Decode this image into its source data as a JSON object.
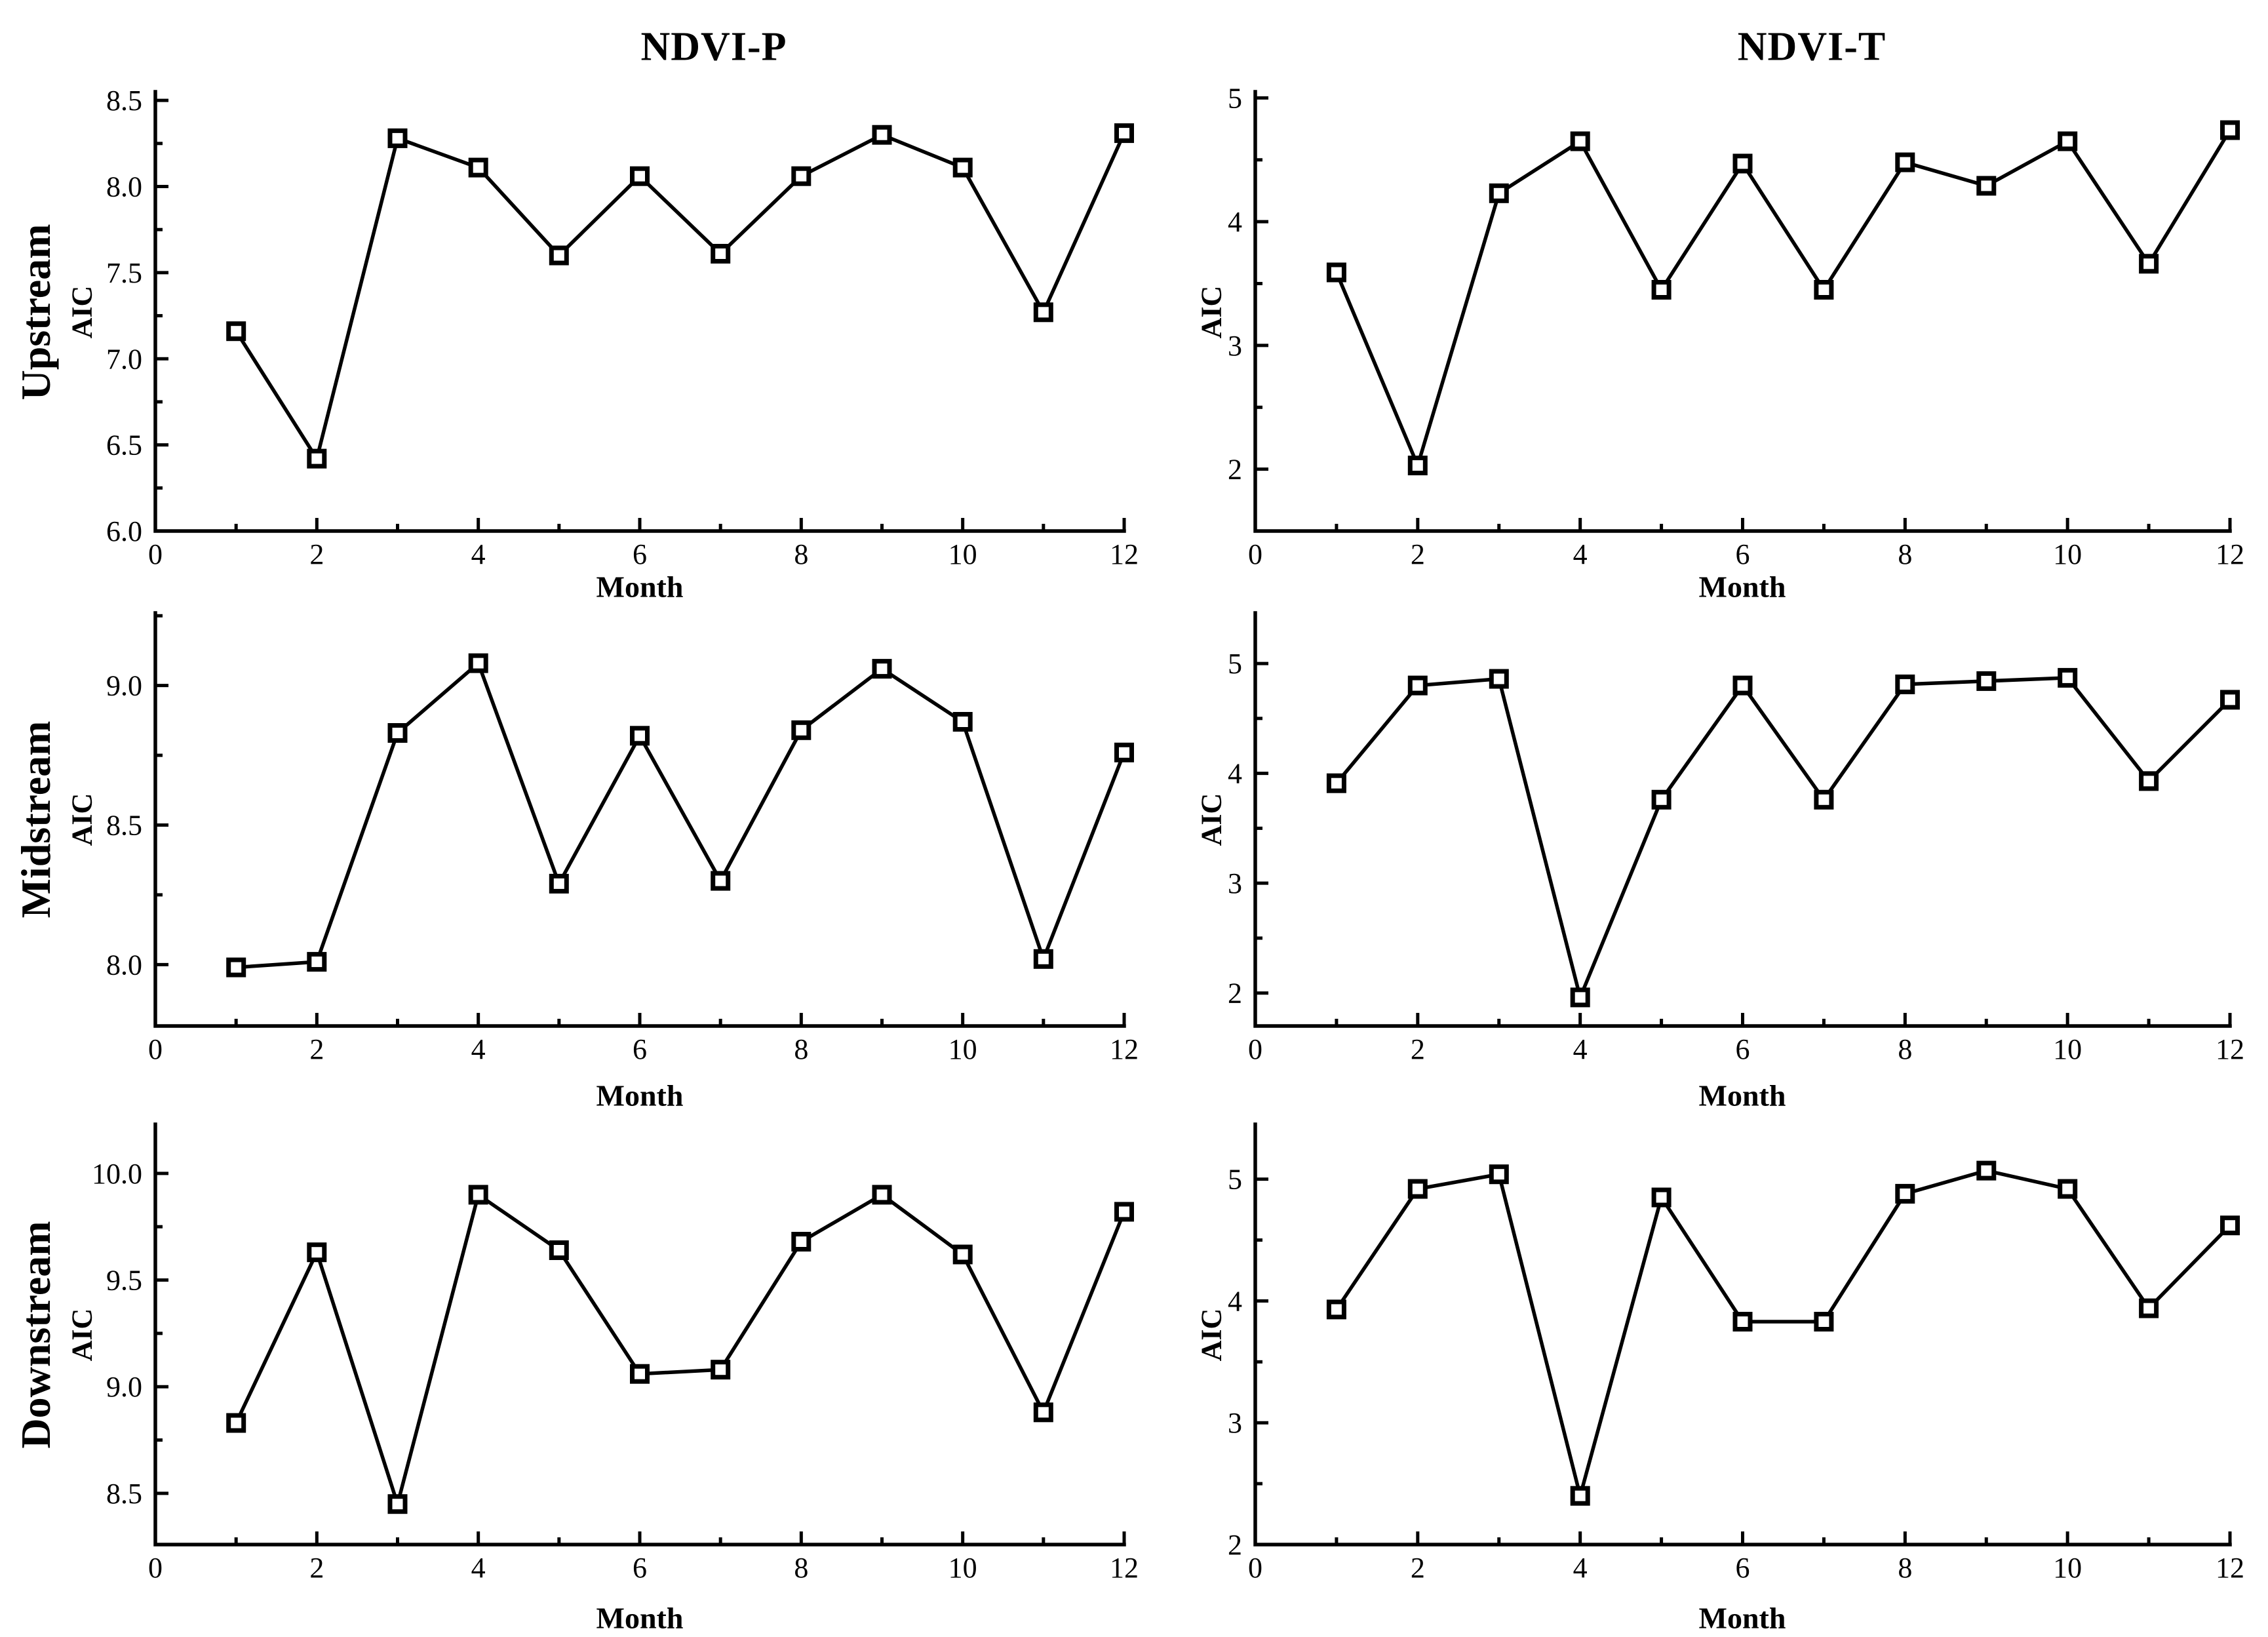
{
  "figure": {
    "column_titles": [
      "NDVI-P",
      "NDVI-T"
    ],
    "row_labels": [
      "Upstream",
      "Midstream",
      "Downstream"
    ],
    "background_color": "#ffffff",
    "axis_color": "#000000"
  },
  "chart_data": [
    {
      "type": "line",
      "panel": "upstream-ndvi-p",
      "row": "Upstream",
      "column": "NDVI-P",
      "xlabel": "Month",
      "ylabel": "AIC",
      "x": [
        1,
        2,
        3,
        4,
        5,
        6,
        7,
        8,
        9,
        10,
        11,
        12
      ],
      "y": [
        7.16,
        6.42,
        8.28,
        8.11,
        7.6,
        8.06,
        7.61,
        8.06,
        8.3,
        8.11,
        7.27,
        8.31
      ],
      "xlim": [
        0,
        12
      ],
      "ylim": [
        6.0,
        8.55
      ],
      "xticks": [
        0,
        2,
        4,
        6,
        8,
        10,
        12
      ],
      "xtick_labels": [
        "0",
        "2",
        "4",
        "6",
        "8",
        "10",
        "12"
      ],
      "yticks": [
        6.0,
        6.5,
        7.0,
        7.5,
        8.0,
        8.5
      ],
      "ytick_labels": [
        "6.0",
        "6.5",
        "7.0",
        "7.5",
        "8.0",
        "8.5"
      ],
      "x_minor_step": 1,
      "y_minor_step": 0.25,
      "grid": false,
      "marker": "open-square",
      "marker_fill": "#ffffff",
      "line_color": "#000000"
    },
    {
      "type": "line",
      "panel": "upstream-ndvi-t",
      "row": "Upstream",
      "column": "NDVI-T",
      "xlabel": "Month",
      "ylabel": "AIC",
      "x": [
        1,
        2,
        3,
        4,
        5,
        6,
        7,
        8,
        9,
        10,
        11,
        12
      ],
      "y": [
        3.59,
        2.03,
        4.23,
        4.65,
        3.45,
        4.47,
        3.45,
        4.48,
        4.29,
        4.65,
        3.66,
        4.74
      ],
      "xlim": [
        0,
        12
      ],
      "ylim": [
        1.5,
        5.05
      ],
      "xticks": [
        0,
        2,
        4,
        6,
        8,
        10,
        12
      ],
      "xtick_labels": [
        "0",
        "2",
        "4",
        "6",
        "8",
        "10",
        "12"
      ],
      "yticks": [
        2,
        3,
        4,
        5
      ],
      "ytick_labels": [
        "2",
        "3",
        "4",
        "5"
      ],
      "x_minor_step": 1,
      "y_minor_step": 0.5,
      "grid": false,
      "marker": "open-square",
      "marker_fill": "#ffffff",
      "line_color": "#000000"
    },
    {
      "type": "line",
      "panel": "midstream-ndvi-p",
      "row": "Midstream",
      "column": "NDVI-P",
      "xlabel": "Month",
      "ylabel": "AIC",
      "x": [
        1,
        2,
        3,
        4,
        5,
        6,
        7,
        8,
        9,
        10,
        11,
        12
      ],
      "y": [
        7.99,
        8.01,
        8.83,
        9.08,
        8.29,
        8.82,
        8.3,
        8.84,
        9.06,
        8.87,
        8.02,
        8.76
      ],
      "xlim": [
        0,
        12
      ],
      "ylim": [
        7.78,
        9.26
      ],
      "xticks": [
        0,
        2,
        4,
        6,
        8,
        10,
        12
      ],
      "xtick_labels": [
        "0",
        "2",
        "4",
        "6",
        "8",
        "10",
        "12"
      ],
      "yticks": [
        8.0,
        8.5,
        9.0
      ],
      "ytick_labels": [
        "8.0",
        "8.5",
        "9.0"
      ],
      "x_minor_step": 1,
      "y_minor_step": 0.25,
      "grid": false,
      "marker": "open-square",
      "marker_fill": "#ffffff",
      "line_color": "#000000"
    },
    {
      "type": "line",
      "panel": "midstream-ndvi-t",
      "row": "Midstream",
      "column": "NDVI-T",
      "xlabel": "Month",
      "ylabel": "AIC",
      "x": [
        1,
        2,
        3,
        4,
        5,
        6,
        7,
        8,
        9,
        10,
        11,
        12
      ],
      "y": [
        3.91,
        4.8,
        4.86,
        1.96,
        3.76,
        4.8,
        3.76,
        4.81,
        4.84,
        4.87,
        3.93,
        4.67
      ],
      "xlim": [
        0,
        12
      ],
      "ylim": [
        1.7,
        5.46
      ],
      "xticks": [
        0,
        2,
        4,
        6,
        8,
        10,
        12
      ],
      "xtick_labels": [
        "0",
        "2",
        "4",
        "6",
        "8",
        "10",
        "12"
      ],
      "yticks": [
        2,
        3,
        4,
        5
      ],
      "ytick_labels": [
        "2",
        "3",
        "4",
        "5"
      ],
      "x_minor_step": 1,
      "y_minor_step": 0.5,
      "grid": false,
      "marker": "open-square",
      "marker_fill": "#ffffff",
      "line_color": "#000000"
    },
    {
      "type": "line",
      "panel": "downstream-ndvi-p",
      "row": "Downstream",
      "column": "NDVI-P",
      "xlabel": "Month",
      "ylabel": "AIC",
      "x": [
        1,
        2,
        3,
        4,
        5,
        6,
        7,
        8,
        9,
        10,
        11,
        12
      ],
      "y": [
        8.83,
        9.63,
        8.45,
        9.9,
        9.64,
        9.06,
        9.08,
        9.68,
        9.9,
        9.62,
        8.88,
        9.82
      ],
      "xlim": [
        0,
        12
      ],
      "ylim": [
        8.26,
        10.23
      ],
      "xticks": [
        0,
        2,
        4,
        6,
        8,
        10,
        12
      ],
      "xtick_labels": [
        "0",
        "2",
        "4",
        "6",
        "8",
        "10",
        "12"
      ],
      "yticks": [
        8.5,
        9.0,
        9.5,
        10.0
      ],
      "ytick_labels": [
        "8.5",
        "9.0",
        "9.5",
        "10.0"
      ],
      "x_minor_step": 1,
      "y_minor_step": 0.25,
      "grid": false,
      "marker": "open-square",
      "marker_fill": "#ffffff",
      "line_color": "#000000"
    },
    {
      "type": "line",
      "panel": "downstream-ndvi-t",
      "row": "Downstream",
      "column": "NDVI-T",
      "xlabel": "Month",
      "ylabel": "AIC",
      "x": [
        1,
        2,
        3,
        4,
        5,
        6,
        7,
        8,
        9,
        10,
        11,
        12
      ],
      "y": [
        3.93,
        4.92,
        5.04,
        2.4,
        4.85,
        3.83,
        3.83,
        4.88,
        5.07,
        4.92,
        3.94,
        4.62
      ],
      "xlim": [
        0,
        12
      ],
      "ylim": [
        2.0,
        5.45
      ],
      "xticks": [
        0,
        2,
        4,
        6,
        8,
        10,
        12
      ],
      "xtick_labels": [
        "0",
        "2",
        "4",
        "6",
        "8",
        "10",
        "12"
      ],
      "yticks": [
        2,
        3,
        4,
        5
      ],
      "ytick_labels": [
        "2",
        "3",
        "4",
        "5"
      ],
      "x_minor_step": 1,
      "y_minor_step": 0.5,
      "grid": false,
      "marker": "open-square",
      "marker_fill": "#ffffff",
      "line_color": "#000000"
    }
  ]
}
